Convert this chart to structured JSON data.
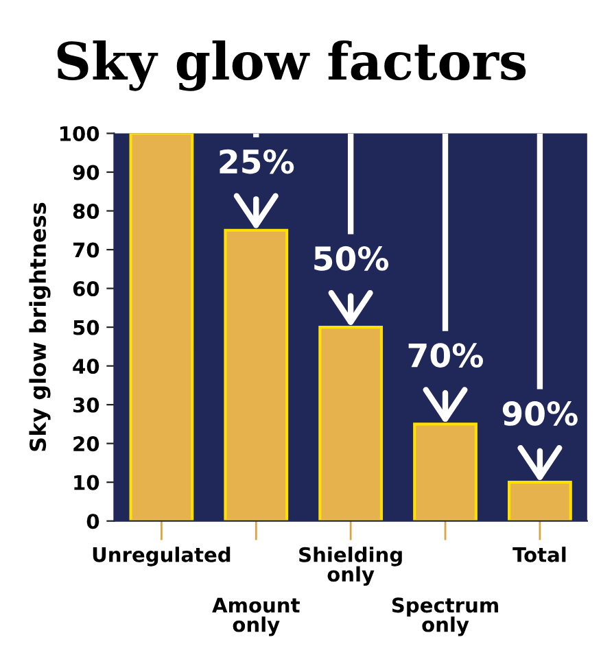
{
  "chart_data": {
    "type": "bar",
    "title": "Sky glow factors",
    "ylabel": "Sky glow brightness",
    "categories": [
      "Unregulated",
      "Amount\nonly",
      "Shielding\nonly",
      "Spectrum\nonly",
      "Total"
    ],
    "values": [
      100,
      75,
      50,
      25,
      10
    ],
    "color": "#e6b24e",
    "ylim": [
      0,
      100
    ],
    "yticks": [
      0,
      10,
      20,
      30,
      40,
      50,
      60,
      70,
      80,
      90,
      100
    ],
    "grid": false,
    "annotations": [
      {
        "text": "25%",
        "x": "Amount\nonly",
        "y": 75
      },
      {
        "text": "50%",
        "x": "Shielding\nonly",
        "y": 50
      },
      {
        "text": "70%",
        "x": "Spectrum\nonly",
        "y": 25
      },
      {
        "text": "90%",
        "x": "Total",
        "y": 10
      }
    ]
  }
}
